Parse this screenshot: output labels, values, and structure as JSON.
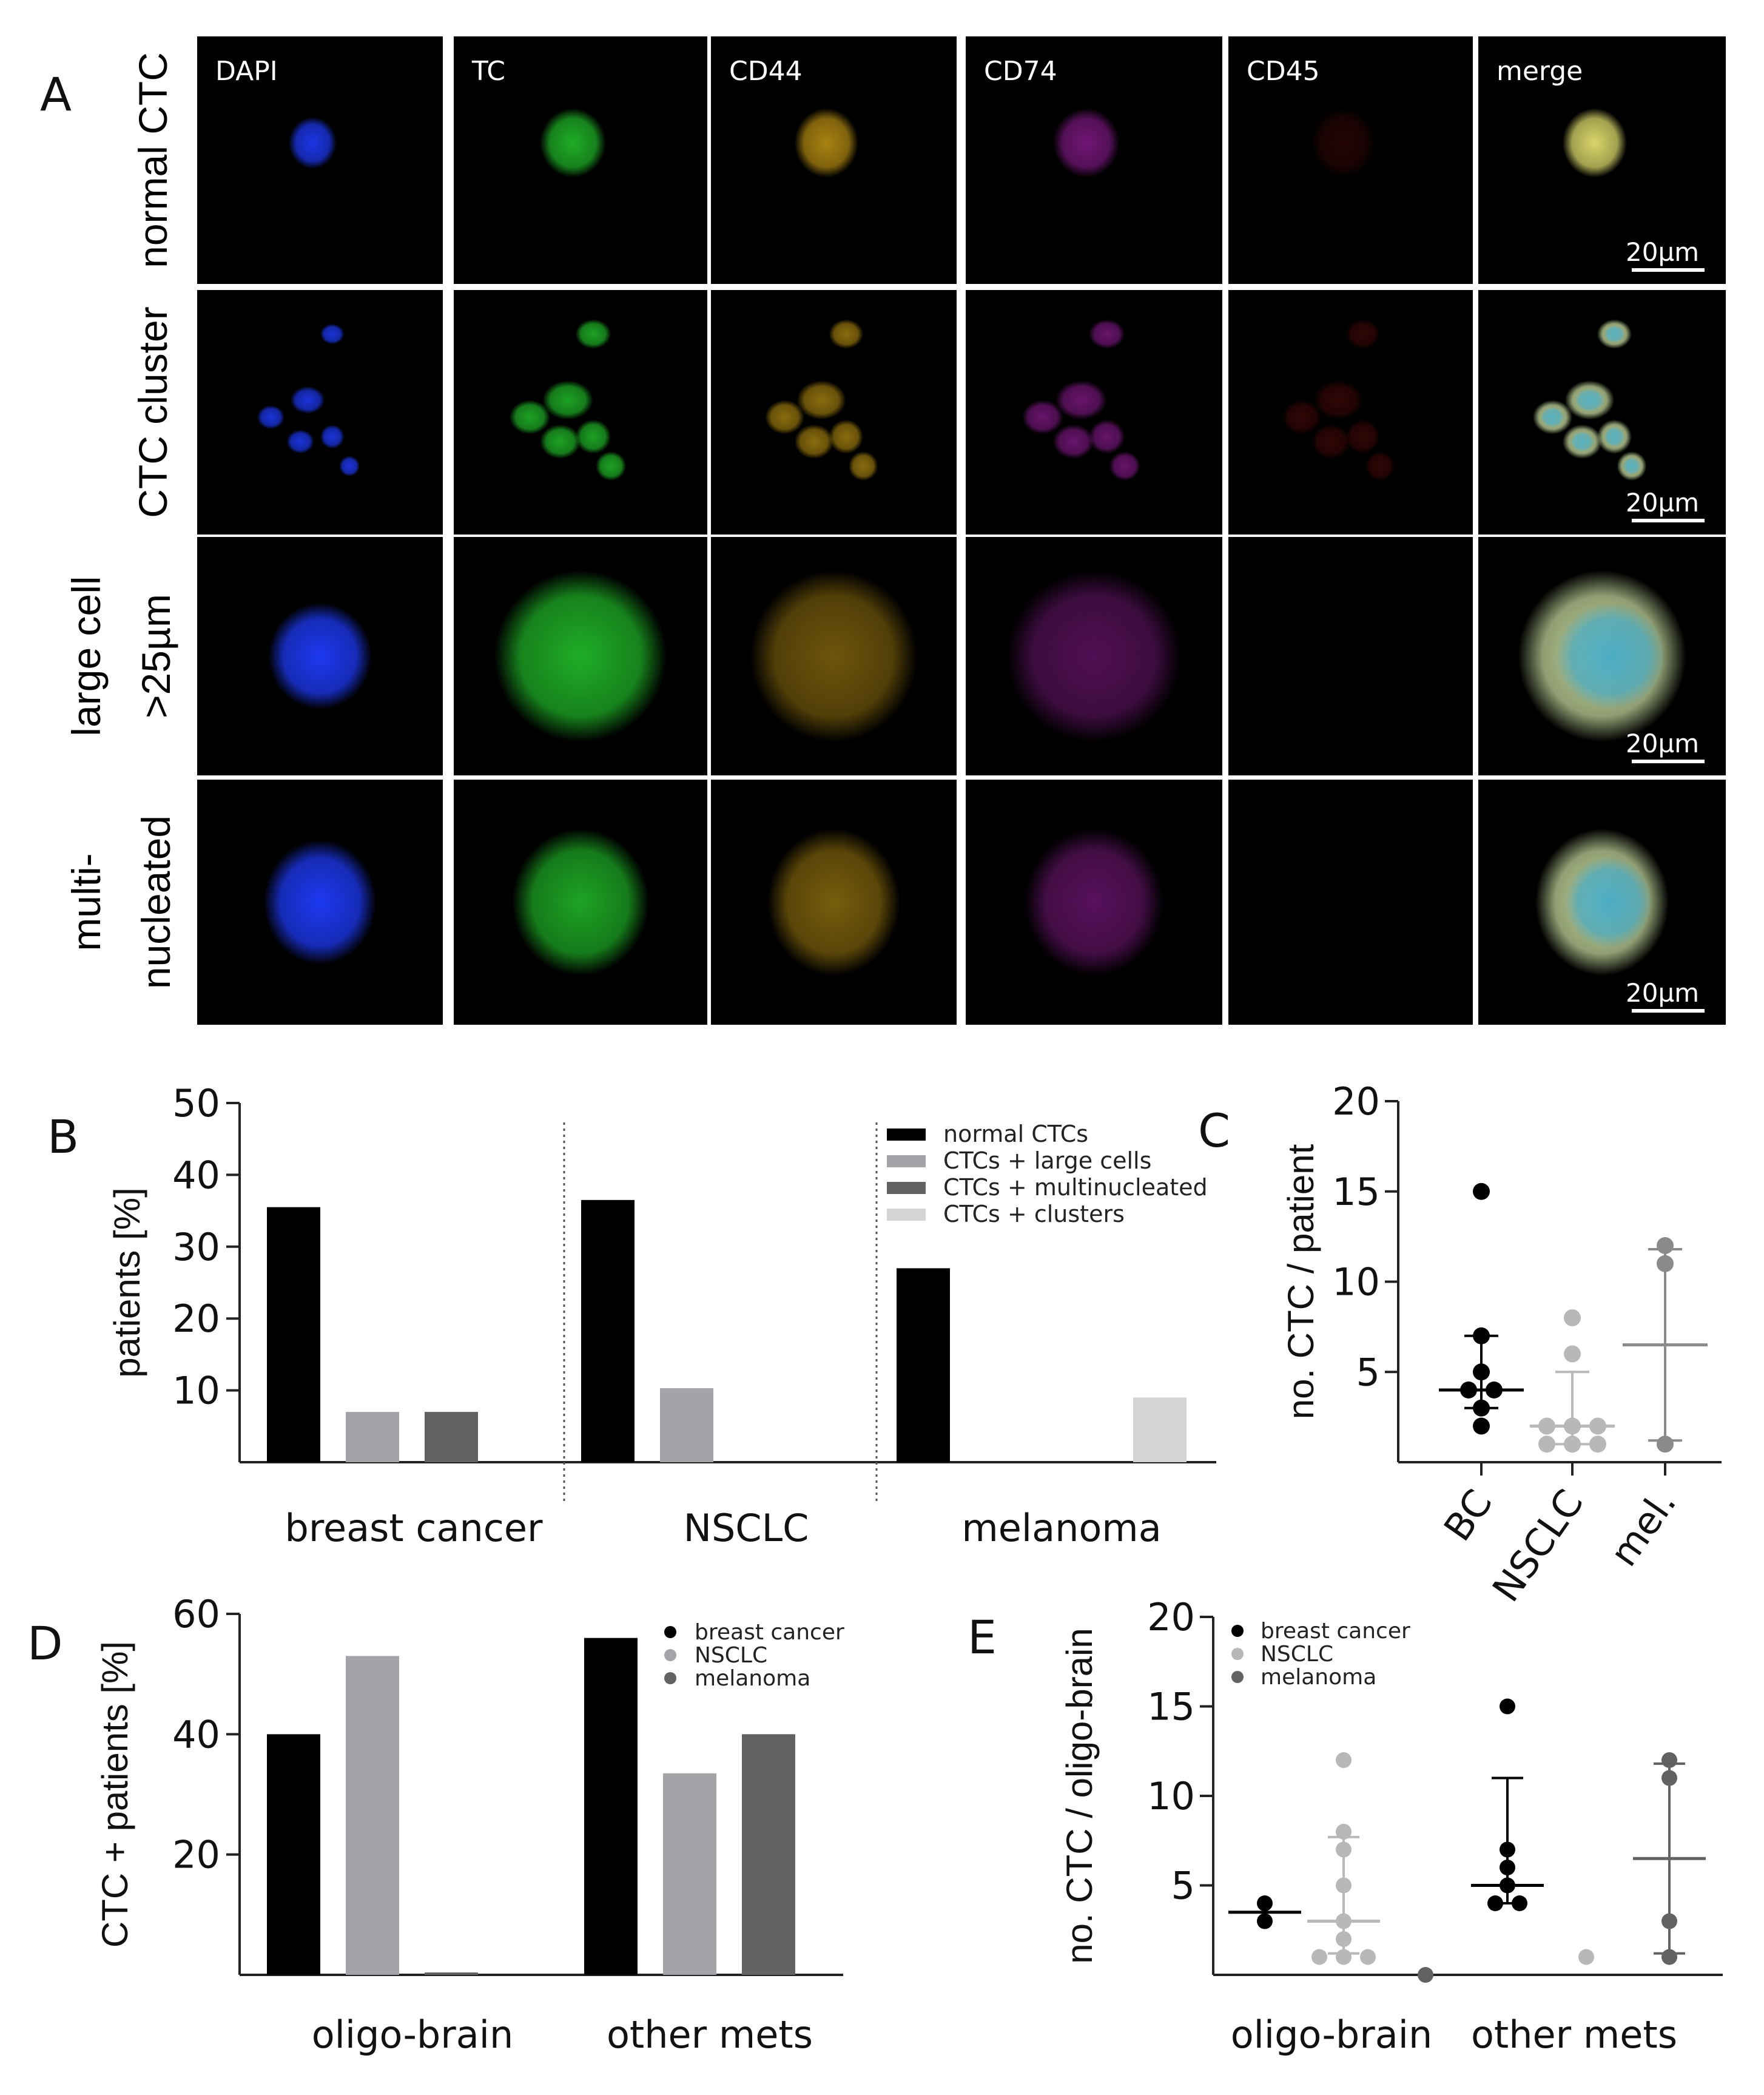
{
  "panel_letters": {
    "a": "A",
    "b": "B",
    "c": "C",
    "d": "D",
    "e": "E"
  },
  "panel_a": {
    "channels": [
      "DAPI",
      "TC",
      "CD44",
      "CD74",
      "CD45",
      "merge"
    ],
    "rows": [
      {
        "lines": [
          "normal CTC"
        ],
        "scale": "20µm"
      },
      {
        "lines": [
          "CTC cluster"
        ],
        "scale": "20µm"
      },
      {
        "lines": [
          "large cell",
          ">25µm"
        ],
        "scale": "20µm"
      },
      {
        "lines": [
          "multi-",
          "nucleated"
        ],
        "scale": "20µm"
      }
    ],
    "channel_colors": {
      "DAPI": "#1f3cff",
      "TC": "#22c02a",
      "CD44": "#c79a14",
      "CD74": "#a01fa6",
      "CD45": "#8a1010"
    }
  },
  "chart_data": [
    {
      "panel": "B",
      "type": "bar",
      "categories": [
        "breast cancer",
        "NSCLC",
        "melanoma"
      ],
      "series": [
        {
          "name": "normal CTCs",
          "color": "#000000",
          "values": [
            35.5,
            36.5,
            27
          ]
        },
        {
          "name": "CTCs + large cells",
          "color": "#a3a3a8",
          "values": [
            7,
            10.3,
            0
          ]
        },
        {
          "name": "CTCs + multinucleated",
          "color": "#626262",
          "values": [
            7,
            0,
            0
          ]
        },
        {
          "name": "CTCs + clusters",
          "color": "#d5d5d5",
          "values": [
            0,
            0,
            9
          ]
        }
      ],
      "ylabel": "patients [%]",
      "yticks": [
        10,
        20,
        30,
        40,
        50
      ],
      "ylim": [
        0,
        50
      ]
    },
    {
      "panel": "C",
      "type": "scatter",
      "categories": [
        "BC",
        "NSCLC",
        "mel."
      ],
      "points": [
        [
          15,
          7,
          5,
          4,
          4,
          3,
          2
        ],
        [
          8,
          6,
          2,
          2,
          2,
          1,
          1,
          1
        ],
        [
          12,
          11,
          1
        ]
      ],
      "colors": [
        "#000000",
        "#b8b8b8",
        "#8a8a8a"
      ],
      "median": [
        4,
        2,
        6.5
      ],
      "range": [
        [
          3,
          7
        ],
        [
          1,
          5
        ],
        [
          1.2,
          11.8
        ]
      ],
      "ylabel": "no. CTC / patient",
      "yticks": [
        5,
        10,
        15,
        20
      ],
      "ylim": [
        0,
        20
      ]
    },
    {
      "panel": "D",
      "type": "bar",
      "categories": [
        "oligo-brain",
        "other mets"
      ],
      "series": [
        {
          "name": "breast cancer",
          "color": "#000000",
          "values": [
            40,
            56
          ]
        },
        {
          "name": "NSCLC",
          "color": "#a3a3a8",
          "values": [
            53,
            33.5
          ]
        },
        {
          "name": "melanoma",
          "color": "#626262",
          "values": [
            0,
            40
          ]
        }
      ],
      "ylabel": "CTC + patients [%]",
      "yticks": [
        20,
        40,
        60
      ],
      "ylim": [
        0,
        60
      ]
    },
    {
      "panel": "E",
      "type": "scatter",
      "categories": [
        "oligo-brain",
        "other mets"
      ],
      "groups": [
        {
          "series": "breast cancer",
          "category": "oligo-brain",
          "points": [
            4,
            3
          ],
          "median": 3.5,
          "range": null
        },
        {
          "series": "NSCLC",
          "category": "oligo-brain",
          "points": [
            12,
            8,
            7,
            5,
            3,
            2,
            1,
            1,
            1
          ],
          "median": 3,
          "range": [
            1.2,
            7.7
          ]
        },
        {
          "series": "melanoma",
          "category": "oligo-brain",
          "points": [
            0
          ],
          "median": null,
          "range": null
        },
        {
          "series": "breast cancer",
          "category": "other mets",
          "points": [
            15,
            7,
            6,
            5,
            4,
            4
          ],
          "median": 5,
          "range": [
            4,
            11
          ]
        },
        {
          "series": "NSCLC",
          "category": "other mets",
          "points": [
            1
          ],
          "median": null,
          "range": null
        },
        {
          "series": "melanoma",
          "category": "other mets",
          "points": [
            12,
            11,
            3,
            1
          ],
          "median": 6.5,
          "range": [
            1.2,
            11.8
          ]
        }
      ],
      "colors": {
        "breast cancer": "#000000",
        "NSCLC": "#b8b8b8",
        "melanoma": "#626262"
      },
      "legend": [
        "breast cancer",
        "NSCLC",
        "melanoma"
      ],
      "ylabel": "no. CTC / oligo-brain",
      "yticks": [
        5,
        10,
        15,
        20
      ],
      "ylim": [
        0,
        20
      ]
    }
  ]
}
